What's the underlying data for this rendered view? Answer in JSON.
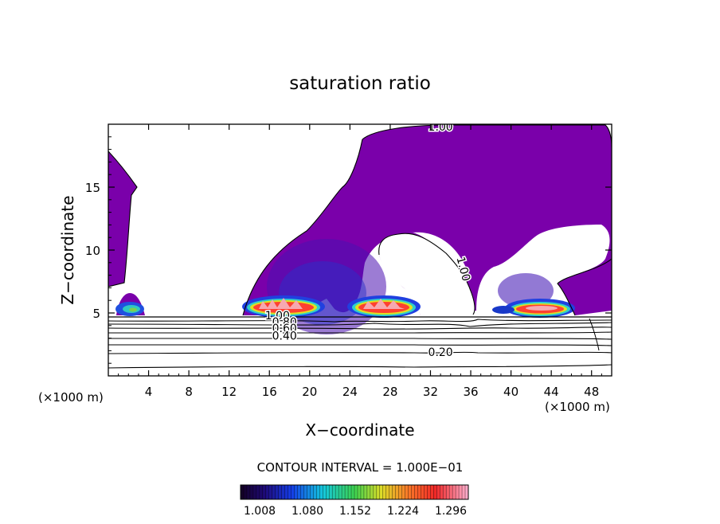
{
  "chart_data": {
    "type": "heatmap",
    "title": "saturation ratio",
    "xlabel": "X−coordinate",
    "ylabel": "Z−coordinate",
    "x_unit_label": "(×1000 m)",
    "x_unit_label_right": "(×1000 m)",
    "xlim": [
      0,
      50
    ],
    "ylim": [
      0,
      20
    ],
    "x_ticks": [
      4,
      8,
      12,
      16,
      20,
      24,
      28,
      32,
      36,
      40,
      44,
      48
    ],
    "y_ticks": [
      5,
      10,
      15
    ],
    "contour_interval_text": "CONTOUR INTERVAL = 1.000E−01",
    "contour_labels": [
      {
        "text": "1.00",
        "x": 33,
        "z": 19.8
      },
      {
        "text": "1.00",
        "x": 35.3,
        "z": 8.5
      },
      {
        "text": "1.00",
        "x": 16.8,
        "z": 4.8
      },
      {
        "text": "0.80",
        "x": 17.5,
        "z": 4.3
      },
      {
        "text": "0.60",
        "x": 17.5,
        "z": 3.8
      },
      {
        "text": "0.40",
        "x": 17.5,
        "z": 3.2
      },
      {
        "text": "0.20",
        "x": 33,
        "z": 1.9
      }
    ],
    "colorbar": {
      "tick_labels": [
        "1.008",
        "1.080",
        "1.152",
        "1.224",
        "1.296"
      ],
      "range": [
        1.0,
        1.33
      ]
    },
    "colors": {
      "saturated_fill": "#7a00aa",
      "high_core": "#ff4030"
    },
    "supersaturated_cells": [
      {
        "x": 3,
        "z": 5.5,
        "peak": 1.16
      },
      {
        "x": 17.5,
        "z": 5.5,
        "peak": 1.32
      },
      {
        "x": 27,
        "z": 5.5,
        "peak": 1.32
      },
      {
        "x": 43,
        "z": 5.5,
        "peak": 1.32
      },
      {
        "x": 39.5,
        "z": 5.3,
        "peak": 1.08
      }
    ]
  }
}
